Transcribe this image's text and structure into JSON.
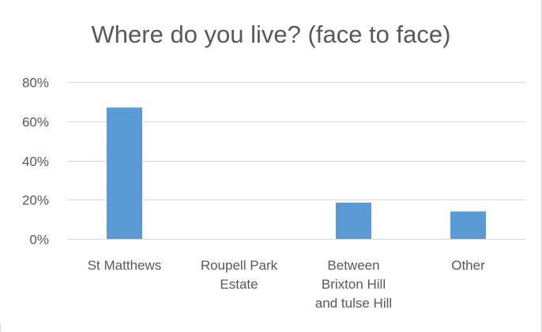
{
  "chart_data": {
    "type": "bar",
    "title": "Where do you live? (face to face)",
    "categories": [
      [
        "St Matthews"
      ],
      [
        "Roupell Park",
        "Estate"
      ],
      [
        "Between",
        "Brixton Hill",
        "and tulse Hill"
      ],
      [
        "Other"
      ]
    ],
    "values": [
      0.67,
      0.0,
      0.185,
      0.14
    ],
    "ylim": [
      0,
      0.8
    ],
    "yticks": [
      0,
      0.2,
      0.4,
      0.6,
      0.8
    ],
    "ytick_labels": [
      "0%",
      "20%",
      "40%",
      "60%",
      "80%"
    ],
    "xlabel": "",
    "ylabel": "",
    "grid": true,
    "bar_color": "#5B9BD5",
    "grid_color": "#D9D9D9",
    "text_color": "#595959"
  }
}
